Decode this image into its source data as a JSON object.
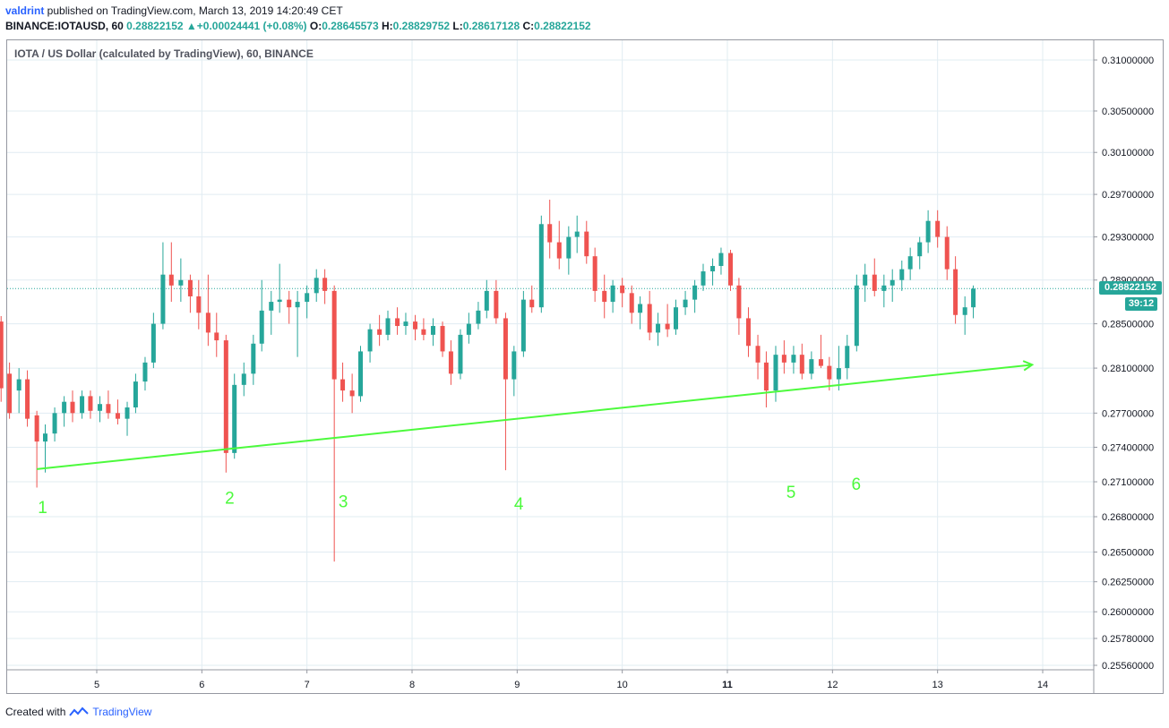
{
  "header": {
    "author": "valdrint",
    "published": " published on TradingView.com, March 13, 2019 14:20:49 CET"
  },
  "ohlc": {
    "symbol": "BINANCE:IOTAUSD, 60",
    "last": "0.28822152",
    "change_arrow": "▲",
    "change": "+0.00024441 (+0.08%)",
    "o_label": "O:",
    "o": "0.28645573",
    "h_label": "H:",
    "h": "0.28829752",
    "l_label": "L:",
    "l": "0.28617128",
    "c_label": "C:",
    "c": "0.28822152"
  },
  "footer": {
    "created_with": "Created with",
    "brand": "TradingView"
  },
  "colors": {
    "up": "#26a69a",
    "down": "#ef5350",
    "trendline": "#4cfa3c",
    "grid": "#e1ecf2",
    "last_price_line": "#26a69a"
  },
  "chart_data": {
    "type": "candlestick",
    "title": "IOTA / US Dollar (calculated by TradingView), 60, BINANCE",
    "x_ticks": [
      "5",
      "6",
      "7",
      "8",
      "9",
      "10",
      "11",
      "12",
      "13",
      "14"
    ],
    "x_tick_bold": "11",
    "y_ticks": [
      "0.31000000",
      "0.30500000",
      "0.30100000",
      "0.29700000",
      "0.29300000",
      "0.28900000",
      "0.28500000",
      "0.28100000",
      "0.27700000",
      "0.27400000",
      "0.27100000",
      "0.26800000",
      "0.26500000",
      "0.26250000",
      "0.26000000",
      "0.25780000",
      "0.25560000"
    ],
    "y_scale": "log",
    "last_price": {
      "value": 0.28822152,
      "label": "0.28822152",
      "countdown": "39:12"
    },
    "trendline": {
      "from": [
        4.43,
        0.2721
      ],
      "to": [
        13.9,
        0.2813
      ],
      "arrow": true
    },
    "annotations": [
      {
        "text": "1",
        "x": 4.44,
        "y": 0.2683
      },
      {
        "text": "2",
        "x": 6.22,
        "y": 0.2691
      },
      {
        "text": "3",
        "x": 7.3,
        "y": 0.2688
      },
      {
        "text": "4",
        "x": 8.97,
        "y": 0.2686
      },
      {
        "text": "5",
        "x": 11.56,
        "y": 0.2696
      },
      {
        "text": "6",
        "x": 12.18,
        "y": 0.2703
      }
    ],
    "candles_xyohlc": [
      [
        4.0,
        0.2873,
        0.2885,
        0.2848,
        0.2852
      ],
      [
        4.09,
        0.2852,
        0.2857,
        0.278,
        0.2792
      ],
      [
        4.17,
        0.2805,
        0.2815,
        0.2765,
        0.277
      ],
      [
        4.26,
        0.279,
        0.281,
        0.277,
        0.28
      ],
      [
        4.34,
        0.28,
        0.2808,
        0.2758,
        0.2765
      ],
      [
        4.43,
        0.2768,
        0.2772,
        0.2705,
        0.2745
      ],
      [
        4.51,
        0.2745,
        0.276,
        0.2718,
        0.2752
      ],
      [
        4.6,
        0.2752,
        0.2775,
        0.2745,
        0.277
      ],
      [
        4.69,
        0.277,
        0.2785,
        0.2758,
        0.278
      ],
      [
        4.77,
        0.278,
        0.279,
        0.2762,
        0.277
      ],
      [
        4.86,
        0.277,
        0.279,
        0.2765,
        0.2785
      ],
      [
        4.94,
        0.2785,
        0.279,
        0.2765,
        0.2772
      ],
      [
        5.03,
        0.2772,
        0.2785,
        0.2762,
        0.2778
      ],
      [
        5.11,
        0.2778,
        0.279,
        0.2765,
        0.277
      ],
      [
        5.2,
        0.277,
        0.2782,
        0.276,
        0.2765
      ],
      [
        5.29,
        0.2765,
        0.278,
        0.275,
        0.2775
      ],
      [
        5.37,
        0.2775,
        0.2805,
        0.277,
        0.2798
      ],
      [
        5.46,
        0.2798,
        0.282,
        0.279,
        0.2815
      ],
      [
        5.54,
        0.2815,
        0.286,
        0.281,
        0.285
      ],
      [
        5.63,
        0.285,
        0.2925,
        0.2845,
        0.2895
      ],
      [
        5.71,
        0.2895,
        0.2925,
        0.287,
        0.2885
      ],
      [
        5.8,
        0.2885,
        0.291,
        0.287,
        0.289
      ],
      [
        5.89,
        0.289,
        0.2895,
        0.286,
        0.2875
      ],
      [
        5.97,
        0.2875,
        0.289,
        0.2845,
        0.286
      ],
      [
        6.06,
        0.286,
        0.2895,
        0.283,
        0.2842
      ],
      [
        6.14,
        0.2842,
        0.286,
        0.282,
        0.2835
      ],
      [
        6.23,
        0.2835,
        0.284,
        0.2718,
        0.2735
      ],
      [
        6.31,
        0.2735,
        0.2805,
        0.273,
        0.2795
      ],
      [
        6.4,
        0.2795,
        0.2815,
        0.2785,
        0.2805
      ],
      [
        6.49,
        0.2805,
        0.284,
        0.2795,
        0.2832
      ],
      [
        6.57,
        0.2832,
        0.289,
        0.2825,
        0.2862
      ],
      [
        6.66,
        0.2862,
        0.288,
        0.284,
        0.287
      ],
      [
        6.74,
        0.287,
        0.2905,
        0.286,
        0.2872
      ],
      [
        6.83,
        0.2872,
        0.288,
        0.285,
        0.2865
      ],
      [
        6.91,
        0.2865,
        0.288,
        0.282,
        0.287
      ],
      [
        7.0,
        0.287,
        0.2885,
        0.2855,
        0.2878
      ],
      [
        7.09,
        0.2878,
        0.29,
        0.287,
        0.2892
      ],
      [
        7.17,
        0.2892,
        0.29,
        0.2868,
        0.288
      ],
      [
        7.26,
        0.288,
        0.2885,
        0.2642,
        0.28
      ],
      [
        7.34,
        0.28,
        0.2815,
        0.278,
        0.279
      ],
      [
        7.43,
        0.279,
        0.2805,
        0.277,
        0.2785
      ],
      [
        7.51,
        0.2785,
        0.283,
        0.278,
        0.2825
      ],
      [
        7.6,
        0.2825,
        0.285,
        0.2815,
        0.2845
      ],
      [
        7.69,
        0.2845,
        0.2858,
        0.283,
        0.284
      ],
      [
        7.77,
        0.284,
        0.2862,
        0.2835,
        0.2855
      ],
      [
        7.86,
        0.2855,
        0.2865,
        0.284,
        0.2848
      ],
      [
        7.94,
        0.2848,
        0.286,
        0.284,
        0.2852
      ],
      [
        8.03,
        0.2852,
        0.2858,
        0.2835,
        0.2845
      ],
      [
        8.11,
        0.2845,
        0.2855,
        0.2835,
        0.284
      ],
      [
        8.2,
        0.284,
        0.2855,
        0.283,
        0.2848
      ],
      [
        8.29,
        0.2848,
        0.2852,
        0.282,
        0.2825
      ],
      [
        8.37,
        0.2825,
        0.2835,
        0.2795,
        0.2805
      ],
      [
        8.46,
        0.2805,
        0.2845,
        0.28,
        0.284
      ],
      [
        8.54,
        0.284,
        0.286,
        0.2832,
        0.285
      ],
      [
        8.63,
        0.285,
        0.287,
        0.2845,
        0.2862
      ],
      [
        8.71,
        0.2862,
        0.289,
        0.2855,
        0.288
      ],
      [
        8.8,
        0.288,
        0.289,
        0.285,
        0.2855
      ],
      [
        8.89,
        0.2855,
        0.286,
        0.272,
        0.28
      ],
      [
        8.97,
        0.28,
        0.283,
        0.2785,
        0.2825
      ],
      [
        9.06,
        0.2825,
        0.288,
        0.282,
        0.2872
      ],
      [
        9.14,
        0.2872,
        0.2885,
        0.286,
        0.2865
      ],
      [
        9.23,
        0.2865,
        0.295,
        0.286,
        0.2942
      ],
      [
        9.31,
        0.2942,
        0.2965,
        0.291,
        0.2925
      ],
      [
        9.4,
        0.2925,
        0.2945,
        0.29,
        0.291
      ],
      [
        9.49,
        0.291,
        0.294,
        0.2895,
        0.293
      ],
      [
        9.57,
        0.293,
        0.295,
        0.2915,
        0.2935
      ],
      [
        9.66,
        0.2935,
        0.2945,
        0.2905,
        0.2912
      ],
      [
        9.74,
        0.2912,
        0.292,
        0.287,
        0.288
      ],
      [
        9.83,
        0.288,
        0.2895,
        0.2855,
        0.287
      ],
      [
        9.91,
        0.287,
        0.289,
        0.286,
        0.2885
      ],
      [
        10.0,
        0.2885,
        0.2892,
        0.2865,
        0.2878
      ],
      [
        10.09,
        0.2878,
        0.2885,
        0.285,
        0.286
      ],
      [
        10.17,
        0.286,
        0.2875,
        0.2845,
        0.2868
      ],
      [
        10.26,
        0.2868,
        0.288,
        0.2835,
        0.2842
      ],
      [
        10.34,
        0.2842,
        0.286,
        0.283,
        0.285
      ],
      [
        10.43,
        0.285,
        0.2868,
        0.2838,
        0.2845
      ],
      [
        10.51,
        0.2845,
        0.2872,
        0.284,
        0.2865
      ],
      [
        10.6,
        0.2865,
        0.288,
        0.2858,
        0.2872
      ],
      [
        10.69,
        0.2872,
        0.289,
        0.286,
        0.2885
      ],
      [
        10.77,
        0.2885,
        0.2905,
        0.288,
        0.2898
      ],
      [
        10.86,
        0.2898,
        0.291,
        0.2885,
        0.2903
      ],
      [
        10.94,
        0.2903,
        0.292,
        0.2895,
        0.2915
      ],
      [
        11.03,
        0.2915,
        0.2918,
        0.288,
        0.2885
      ],
      [
        11.11,
        0.2885,
        0.2892,
        0.284,
        0.2855
      ],
      [
        11.2,
        0.2855,
        0.2865,
        0.282,
        0.283
      ],
      [
        11.29,
        0.283,
        0.284,
        0.28,
        0.2815
      ],
      [
        11.37,
        0.2815,
        0.2825,
        0.2775,
        0.279
      ],
      [
        11.46,
        0.279,
        0.283,
        0.278,
        0.2822
      ],
      [
        11.54,
        0.2822,
        0.2835,
        0.2805,
        0.2815
      ],
      [
        11.63,
        0.2815,
        0.283,
        0.2805,
        0.2822
      ],
      [
        11.71,
        0.2822,
        0.2832,
        0.28,
        0.2805
      ],
      [
        11.8,
        0.2805,
        0.2825,
        0.28,
        0.2818
      ],
      [
        11.89,
        0.2818,
        0.284,
        0.281,
        0.2812
      ],
      [
        11.97,
        0.2812,
        0.282,
        0.279,
        0.28
      ],
      [
        12.06,
        0.28,
        0.283,
        0.279,
        0.281
      ],
      [
        12.14,
        0.281,
        0.284,
        0.28,
        0.283
      ],
      [
        12.23,
        0.283,
        0.2895,
        0.2825,
        0.2885
      ],
      [
        12.31,
        0.2885,
        0.2905,
        0.287,
        0.2895
      ],
      [
        12.4,
        0.2895,
        0.291,
        0.2875,
        0.288
      ],
      [
        12.49,
        0.288,
        0.2895,
        0.2865,
        0.2885
      ],
      [
        12.57,
        0.2885,
        0.29,
        0.287,
        0.289
      ],
      [
        12.66,
        0.289,
        0.2908,
        0.288,
        0.29
      ],
      [
        12.74,
        0.29,
        0.292,
        0.289,
        0.2912
      ],
      [
        12.83,
        0.2912,
        0.293,
        0.29,
        0.2925
      ],
      [
        12.91,
        0.2925,
        0.2955,
        0.2915,
        0.2945
      ],
      [
        13.0,
        0.2945,
        0.2955,
        0.292,
        0.293
      ],
      [
        13.09,
        0.293,
        0.294,
        0.289,
        0.29
      ],
      [
        13.17,
        0.29,
        0.2912,
        0.285,
        0.2858
      ],
      [
        13.26,
        0.2858,
        0.2875,
        0.284,
        0.2865
      ],
      [
        13.34,
        0.2865,
        0.2885,
        0.2855,
        0.2882
      ]
    ]
  }
}
